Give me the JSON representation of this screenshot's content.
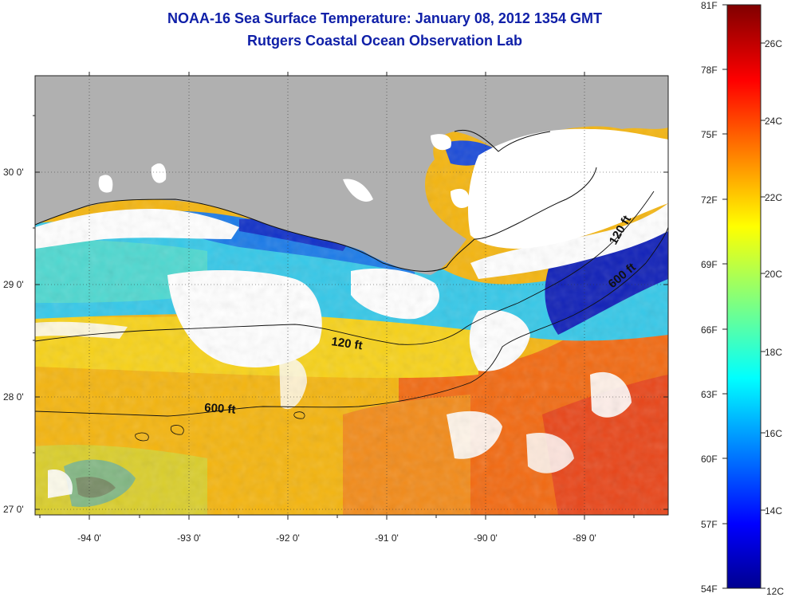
{
  "title": {
    "line1": "NOAA-16 Sea Surface Temperature:  January 08, 2012 1354 GMT",
    "line2": "Rutgers Coastal Ocean Observation Lab"
  },
  "map": {
    "x_tick_labels": [
      "-94 0'",
      "-93 0'",
      "-92 0'",
      "-91 0'",
      "-90 0'",
      "-89 0'"
    ],
    "y_tick_labels": [
      "30 0'",
      "29 0'",
      "28 0'",
      "27 0'"
    ],
    "contour_labels": [
      "120 ft",
      "600 ft",
      "120 ft",
      "600 ft"
    ],
    "colors": {
      "land": "#b0b0b0",
      "cloud": "#ffffff",
      "coastline": "#111111"
    }
  },
  "colorbar": {
    "f_labels": [
      "81F",
      "78F",
      "75F",
      "72F",
      "69F",
      "66F",
      "63F",
      "60F",
      "57F",
      "54F"
    ],
    "c_labels": [
      "26C",
      "24C",
      "22C",
      "20C",
      "18C",
      "16C",
      "14C",
      "12C"
    ],
    "range_f": [
      54,
      81
    ],
    "range_c": [
      12,
      27.2
    ],
    "colormap": "jet"
  }
}
